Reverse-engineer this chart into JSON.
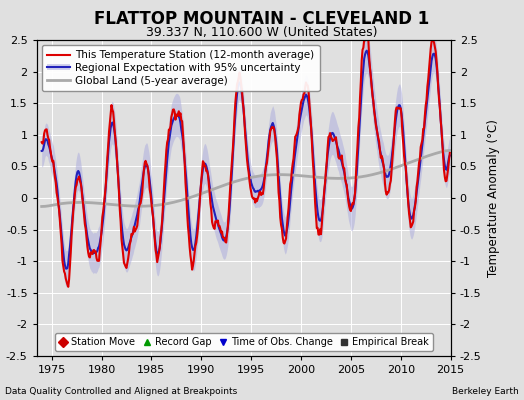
{
  "title": "FLATTOP MOUNTAIN - CLEVELAND 1",
  "subtitle": "39.337 N, 110.600 W (United States)",
  "ylabel": "Temperature Anomaly (°C)",
  "xlabel_left": "Data Quality Controlled and Aligned at Breakpoints",
  "xlabel_right": "Berkeley Earth",
  "ylim": [
    -2.5,
    2.5
  ],
  "xlim": [
    1973.5,
    2014.5
  ],
  "xticks": [
    1975,
    1980,
    1985,
    1990,
    1995,
    2000,
    2005,
    2010,
    2015
  ],
  "yticks": [
    -2.5,
    -2,
    -1.5,
    -1,
    -0.5,
    0,
    0.5,
    1,
    1.5,
    2,
    2.5
  ],
  "legend_items": [
    {
      "label": "This Temperature Station (12-month average)",
      "color": "#dd0000",
      "lw": 1.5
    },
    {
      "label": "Regional Expectation with 95% uncertainty",
      "color": "#2222bb",
      "lw": 1.5
    },
    {
      "label": "Global Land (5-year average)",
      "color": "#aaaaaa",
      "lw": 2.0
    }
  ],
  "band_color": "#aaaadd",
  "band_alpha": 0.5,
  "marker_legend": [
    {
      "marker": "D",
      "color": "#cc0000",
      "label": "Station Move"
    },
    {
      "marker": "^",
      "color": "#009900",
      "label": "Record Gap"
    },
    {
      "marker": "v",
      "color": "#0000cc",
      "label": "Time of Obs. Change"
    },
    {
      "marker": "s",
      "color": "#333333",
      "label": "Empirical Break"
    }
  ],
  "background_color": "#e0e0e0",
  "plot_background": "#e0e0e0",
  "title_fontsize": 12,
  "subtitle_fontsize": 9,
  "tick_fontsize": 8,
  "legend_fontsize": 7.5,
  "marker_leg_fontsize": 7
}
